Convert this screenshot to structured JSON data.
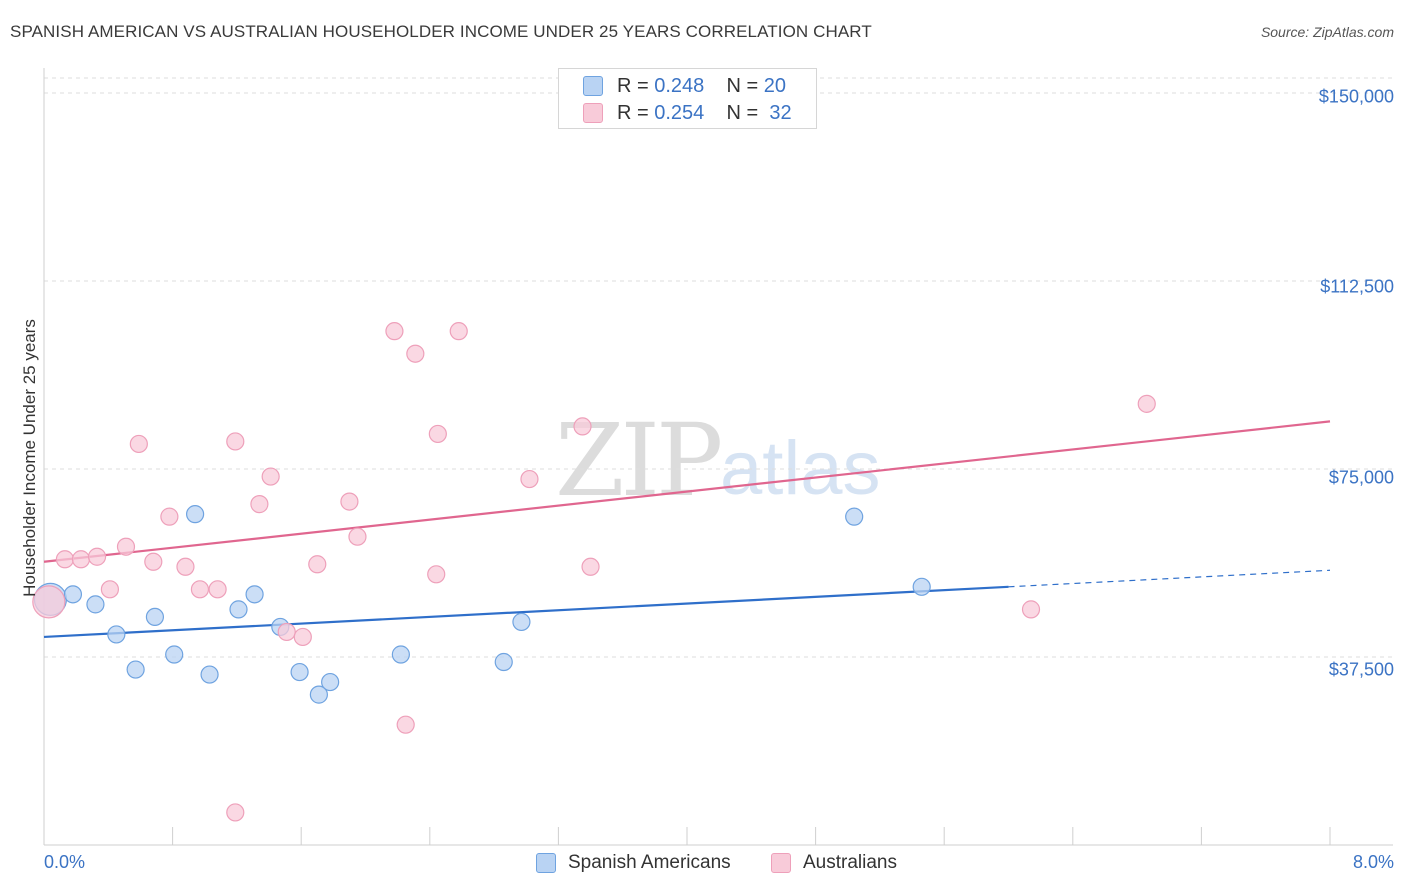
{
  "title": "SPANISH AMERICAN VS AUSTRALIAN HOUSEHOLDER INCOME UNDER 25 YEARS CORRELATION CHART",
  "source": "Source: ZipAtlas.com",
  "watermark": {
    "zip": "ZIP",
    "atlas": "atlas"
  },
  "legend_top": {
    "rows": [
      {
        "r_label": "R = ",
        "r_value": "0.248",
        "n_label": "N = ",
        "n_value": "20"
      },
      {
        "r_label": "R = ",
        "r_value": "0.254",
        "n_label": "N = ",
        "n_value": "32"
      }
    ]
  },
  "legend_bottom": {
    "series1": "Spanish Americans",
    "series2": "Australians"
  },
  "chart_data": {
    "type": "scatter",
    "title": "SPANISH AMERICAN VS AUSTRALIAN HOUSEHOLDER INCOME UNDER 25 YEARS CORRELATION CHART",
    "xlabel": "",
    "ylabel": "Householder Income Under 25 years",
    "xlim": [
      0,
      8
    ],
    "ylim": [
      0,
      153000
    ],
    "x_tick_labels": [
      "0.0%",
      "8.0%"
    ],
    "y_ticks": [
      37500,
      75000,
      112500,
      150000
    ],
    "y_tick_labels": [
      "$37,500",
      "$75,000",
      "$112,500",
      "$150,000"
    ],
    "grid": true,
    "legend_position": "top-center",
    "series": [
      {
        "name": "Spanish Americans",
        "color": "#6fa3e0",
        "fill": "#b9d3f3",
        "line_color": "#2f6fca",
        "R": 0.248,
        "N": 20,
        "trend": {
          "x0": 0,
          "y0": 41500,
          "x1": 6.0,
          "y1": 51500,
          "dashed_to_x": 8.0,
          "dashed_to_y": 54800
        },
        "points": [
          {
            "x": 0.04,
            "y": 49000,
            "size": "large"
          },
          {
            "x": 0.18,
            "y": 50000
          },
          {
            "x": 0.32,
            "y": 48000
          },
          {
            "x": 0.45,
            "y": 42000
          },
          {
            "x": 0.57,
            "y": 35000
          },
          {
            "x": 0.69,
            "y": 45500
          },
          {
            "x": 0.81,
            "y": 38000
          },
          {
            "x": 0.94,
            "y": 66000
          },
          {
            "x": 1.03,
            "y": 34000
          },
          {
            "x": 1.21,
            "y": 47000
          },
          {
            "x": 1.31,
            "y": 50000
          },
          {
            "x": 1.47,
            "y": 43500
          },
          {
            "x": 1.59,
            "y": 34500
          },
          {
            "x": 1.71,
            "y": 30000
          },
          {
            "x": 1.78,
            "y": 32500
          },
          {
            "x": 2.22,
            "y": 38000
          },
          {
            "x": 2.86,
            "y": 36500
          },
          {
            "x": 2.97,
            "y": 44500
          },
          {
            "x": 5.04,
            "y": 65500
          },
          {
            "x": 5.46,
            "y": 51500
          }
        ]
      },
      {
        "name": "Australians",
        "color": "#eea0ba",
        "fill": "#f8cbd9",
        "line_color": "#e0668f",
        "R": 0.254,
        "N": 32,
        "trend": {
          "x0": 0,
          "y0": 56500,
          "x1": 8.0,
          "y1": 84500
        },
        "points": [
          {
            "x": 0.03,
            "y": 48500,
            "size": "large"
          },
          {
            "x": 0.13,
            "y": 57000
          },
          {
            "x": 0.23,
            "y": 57000
          },
          {
            "x": 0.33,
            "y": 57500
          },
          {
            "x": 0.41,
            "y": 51000
          },
          {
            "x": 0.51,
            "y": 59500
          },
          {
            "x": 0.59,
            "y": 80000
          },
          {
            "x": 0.68,
            "y": 56500
          },
          {
            "x": 0.78,
            "y": 65500
          },
          {
            "x": 0.88,
            "y": 55500
          },
          {
            "x": 0.97,
            "y": 51000
          },
          {
            "x": 1.08,
            "y": 51000
          },
          {
            "x": 1.19,
            "y": 6500
          },
          {
            "x": 1.19,
            "y": 80500
          },
          {
            "x": 1.34,
            "y": 68000
          },
          {
            "x": 1.41,
            "y": 73500
          },
          {
            "x": 1.51,
            "y": 42500
          },
          {
            "x": 1.61,
            "y": 41500
          },
          {
            "x": 1.7,
            "y": 56000
          },
          {
            "x": 1.9,
            "y": 68500
          },
          {
            "x": 1.95,
            "y": 61500
          },
          {
            "x": 2.18,
            "y": 102500
          },
          {
            "x": 2.25,
            "y": 24000
          },
          {
            "x": 2.31,
            "y": 98000
          },
          {
            "x": 2.44,
            "y": 54000
          },
          {
            "x": 2.45,
            "y": 82000
          },
          {
            "x": 2.58,
            "y": 102500
          },
          {
            "x": 3.02,
            "y": 73000
          },
          {
            "x": 3.35,
            "y": 83500
          },
          {
            "x": 3.4,
            "y": 55500
          },
          {
            "x": 6.14,
            "y": 47000
          },
          {
            "x": 6.86,
            "y": 88000
          }
        ]
      }
    ]
  }
}
